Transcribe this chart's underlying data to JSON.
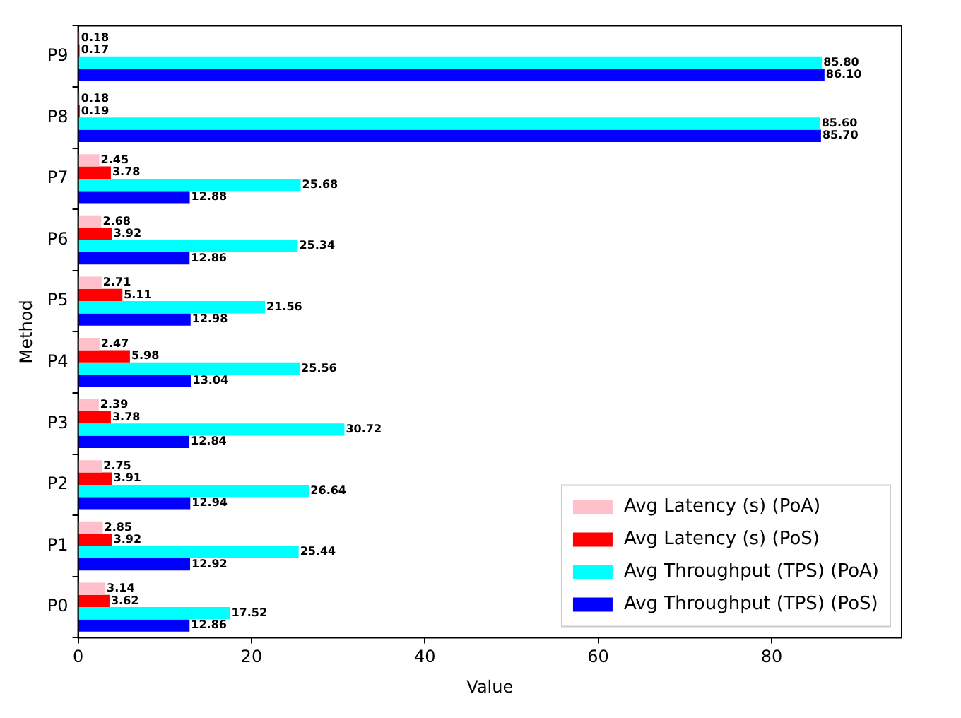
{
  "chart_data": {
    "type": "bar",
    "orientation": "horizontal",
    "xlabel": "Value",
    "ylabel": "Method",
    "categories": [
      "P9",
      "P8",
      "P7",
      "P6",
      "P5",
      "P4",
      "P3",
      "P2",
      "P1",
      "P0"
    ],
    "series": [
      {
        "name": "Avg Latency (s) (PoA)",
        "color": "#ffc0cb",
        "values": [
          0.18,
          0.18,
          2.45,
          2.68,
          2.71,
          2.47,
          2.39,
          2.75,
          2.85,
          3.14
        ],
        "value_labels": [
          "0.18",
          "0.18",
          "2.45",
          "2.68",
          "2.71",
          "2.47",
          "2.39",
          "2.75",
          "2.85",
          "3.14"
        ]
      },
      {
        "name": "Avg Latency (s) (PoS)",
        "color": "#ff0000",
        "values": [
          0.17,
          0.19,
          3.78,
          3.92,
          5.11,
          5.98,
          3.78,
          3.91,
          3.92,
          3.62
        ],
        "value_labels": [
          "0.17",
          "0.19",
          "3.78",
          "3.92",
          "5.11",
          "5.98",
          "3.78",
          "3.91",
          "3.92",
          "3.62"
        ]
      },
      {
        "name": "Avg Throughput (TPS) (PoA)",
        "color": "#00ffff",
        "values": [
          85.8,
          85.6,
          25.68,
          25.34,
          21.56,
          25.56,
          30.72,
          26.64,
          25.44,
          17.52
        ],
        "value_labels": [
          "85.80",
          "85.60",
          "25.68",
          "25.34",
          "21.56",
          "25.56",
          "30.72",
          "26.64",
          "25.44",
          "17.52"
        ]
      },
      {
        "name": "Avg Throughput (TPS) (PoS)",
        "color": "#0000ff",
        "values": [
          86.1,
          85.7,
          12.88,
          12.86,
          12.98,
          13.04,
          12.84,
          12.94,
          12.92,
          12.86
        ],
        "value_labels": [
          "86.10",
          "85.70",
          "12.88",
          "12.86",
          "12.98",
          "13.04",
          "12.84",
          "12.94",
          "12.92",
          "12.86"
        ]
      }
    ],
    "xlim": [
      0,
      95
    ],
    "xticks": [
      0,
      20,
      40,
      60,
      80
    ],
    "grid": false,
    "legend": "bottom right"
  }
}
